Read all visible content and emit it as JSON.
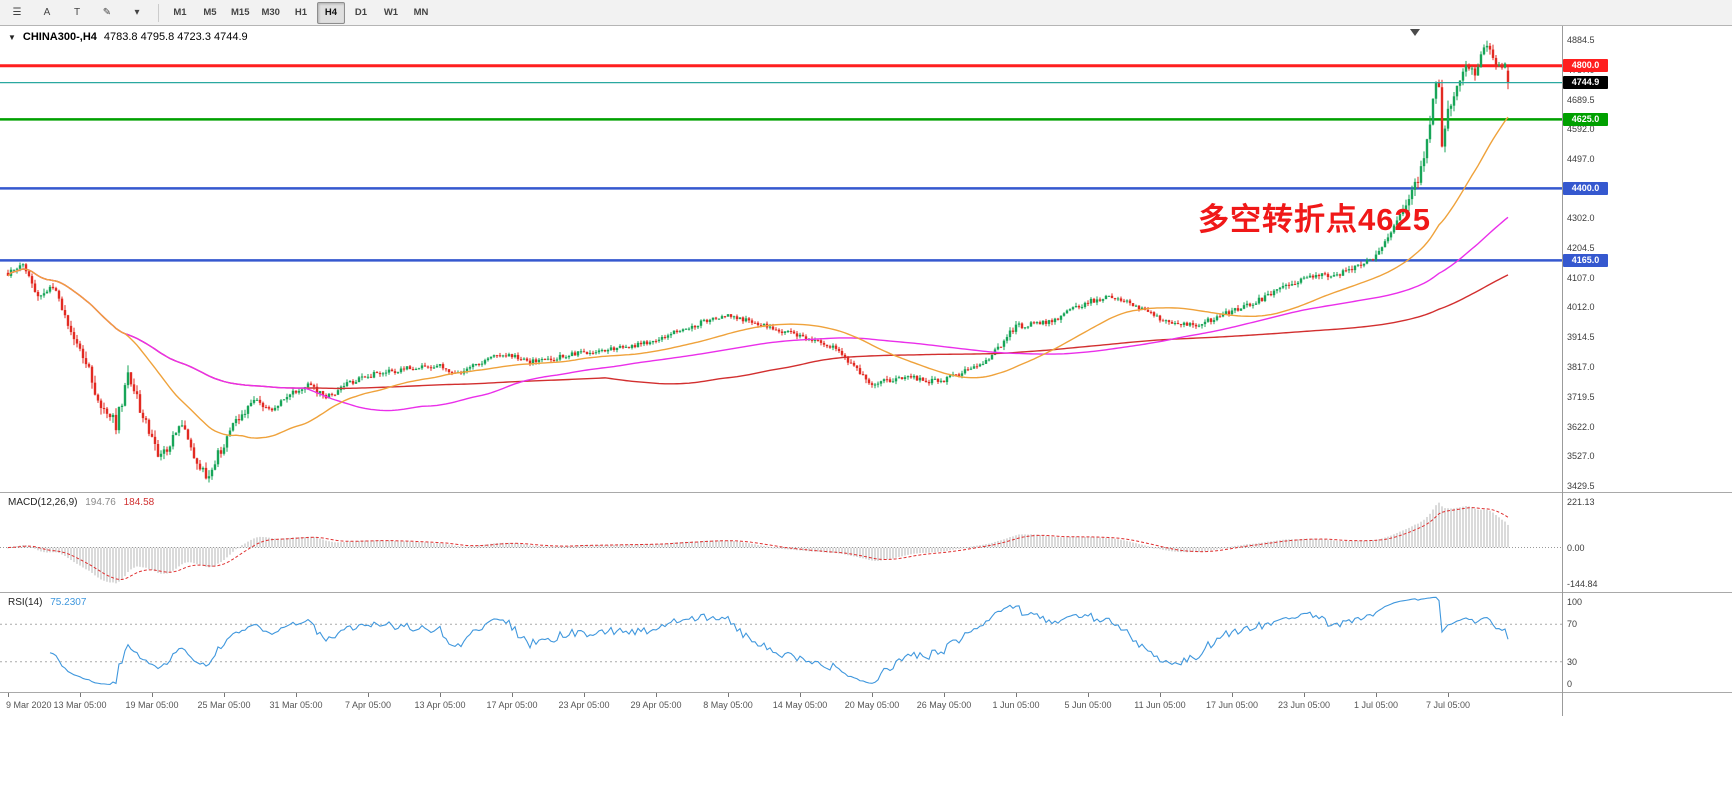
{
  "toolbar": {
    "icons": [
      {
        "name": "menu-icon",
        "glyph": "☰"
      },
      {
        "name": "cursor-tool-icon",
        "glyph": "A"
      },
      {
        "name": "text-tool-icon",
        "glyph": "T"
      },
      {
        "name": "draw-tool-icon",
        "glyph": "✎"
      },
      {
        "name": "caret-down-icon",
        "glyph": "▾"
      }
    ],
    "timeframes": [
      "M1",
      "M5",
      "M15",
      "M30",
      "H1",
      "H4",
      "D1",
      "W1",
      "MN"
    ],
    "selected_timeframe": "H4"
  },
  "main_chart": {
    "symbol": "CHINA300-,H4",
    "ohlc": "4783.8 4795.8 4723.3 4744.9",
    "annotation": {
      "text": "多空转折点4625",
      "color": "#f01818"
    },
    "current_price": {
      "value": 4744.9,
      "label": "4744.9",
      "line_color": "#2aa8a0",
      "badge_bg": "#000000"
    },
    "hlines": [
      {
        "value": 4800.0,
        "label": "4800.0",
        "color": "#ff1f1f",
        "width": 3
      },
      {
        "value": 4625.0,
        "label": "4625.0",
        "color": "#00a000",
        "width": 2.5
      },
      {
        "value": 4400.0,
        "label": "4400.0",
        "color": "#3558cf",
        "width": 2.5
      },
      {
        "value": 4165.0,
        "label": "4165.0",
        "color": "#3558cf",
        "width": 2.5
      }
    ],
    "scale_labels": [
      4884.5,
      4787.0,
      4689.5,
      4592.0,
      4497.0,
      4399.5,
      4302.0,
      4204.5,
      4107.0,
      4012.0,
      3914.5,
      3817.0,
      3719.5,
      3622.0,
      3527.0,
      3429.5
    ],
    "colors": {
      "up": "#18a558",
      "down": "#e22a22",
      "ma_fast": "#efa23b",
      "ma_mid": "#ea2fea",
      "ma_slow": "#d22f2f"
    }
  },
  "macd_panel": {
    "title": "MACD(12,26,9)",
    "value_main": "194.76",
    "value_signal": "184.58",
    "scale_top": "221.13",
    "scale_zero": "0.00",
    "scale_bottom": "-144.84",
    "bar_color": "#b4b4b4",
    "signal_color": "#e03030"
  },
  "rsi_panel": {
    "title": "RSI(14)",
    "value": "75.2307",
    "levels": [
      100,
      70,
      30,
      0
    ],
    "line_color": "#3f97dd"
  },
  "chart_data": {
    "type": "candlestick",
    "symbol": "CHINA300",
    "timeframe": "H4",
    "price_domain": [
      3416,
      4923
    ],
    "num_candles": 501,
    "last_candle": {
      "open": 4783.8,
      "high": 4795.8,
      "low": 4723.3,
      "close": 4744.9
    },
    "price_keyframes": [
      [
        0,
        4120,
        28
      ],
      [
        5,
        4155,
        30
      ],
      [
        10,
        4050,
        36
      ],
      [
        15,
        4080,
        34
      ],
      [
        20,
        3950,
        42
      ],
      [
        26,
        3830,
        50
      ],
      [
        31,
        3690,
        58
      ],
      [
        36,
        3630,
        60
      ],
      [
        40,
        3790,
        52
      ],
      [
        45,
        3660,
        54
      ],
      [
        50,
        3530,
        52
      ],
      [
        54,
        3560,
        46
      ],
      [
        58,
        3640,
        42
      ],
      [
        62,
        3530,
        48
      ],
      [
        66,
        3455,
        50
      ],
      [
        71,
        3550,
        46
      ],
      [
        76,
        3640,
        40
      ],
      [
        82,
        3710,
        32
      ],
      [
        88,
        3680,
        28
      ],
      [
        94,
        3725,
        26
      ],
      [
        100,
        3765,
        26
      ],
      [
        106,
        3715,
        26
      ],
      [
        112,
        3755,
        24
      ],
      [
        118,
        3785,
        24
      ],
      [
        126,
        3800,
        24
      ],
      [
        134,
        3815,
        22
      ],
      [
        144,
        3820,
        22
      ],
      [
        150,
        3795,
        22
      ],
      [
        156,
        3825,
        20
      ],
      [
        162,
        3850,
        20
      ],
      [
        168,
        3855,
        20
      ],
      [
        174,
        3835,
        22
      ],
      [
        180,
        3840,
        22
      ],
      [
        186,
        3855,
        20
      ],
      [
        192,
        3865,
        20
      ],
      [
        200,
        3875,
        20
      ],
      [
        208,
        3885,
        20
      ],
      [
        216,
        3905,
        20
      ],
      [
        222,
        3930,
        22
      ],
      [
        228,
        3950,
        22
      ],
      [
        234,
        3975,
        22
      ],
      [
        240,
        3990,
        22
      ],
      [
        246,
        3970,
        20
      ],
      [
        252,
        3955,
        20
      ],
      [
        258,
        3935,
        20
      ],
      [
        264,
        3920,
        20
      ],
      [
        270,
        3900,
        20
      ],
      [
        276,
        3880,
        22
      ],
      [
        282,
        3820,
        26
      ],
      [
        288,
        3760,
        28
      ],
      [
        294,
        3775,
        24
      ],
      [
        300,
        3790,
        24
      ],
      [
        306,
        3770,
        22
      ],
      [
        312,
        3775,
        22
      ],
      [
        318,
        3800,
        22
      ],
      [
        324,
        3820,
        22
      ],
      [
        330,
        3880,
        26
      ],
      [
        336,
        3950,
        28
      ],
      [
        342,
        3960,
        24
      ],
      [
        348,
        3965,
        22
      ],
      [
        354,
        4000,
        24
      ],
      [
        360,
        4030,
        24
      ],
      [
        366,
        4045,
        22
      ],
      [
        372,
        4040,
        22
      ],
      [
        378,
        4005,
        22
      ],
      [
        384,
        3975,
        22
      ],
      [
        390,
        3960,
        22
      ],
      [
        396,
        3955,
        22
      ],
      [
        402,
        3975,
        22
      ],
      [
        408,
        4000,
        22
      ],
      [
        414,
        4020,
        24
      ],
      [
        420,
        4050,
        24
      ],
      [
        426,
        4080,
        26
      ],
      [
        432,
        4110,
        26
      ],
      [
        438,
        4115,
        24
      ],
      [
        444,
        4120,
        24
      ],
      [
        448,
        4140,
        26
      ],
      [
        452,
        4155,
        26
      ],
      [
        456,
        4180,
        30
      ],
      [
        460,
        4230,
        34
      ],
      [
        464,
        4310,
        44
      ],
      [
        468,
        4390,
        50
      ],
      [
        471,
        4460,
        55
      ],
      [
        474,
        4600,
        65
      ],
      [
        476,
        4745,
        60
      ],
      [
        477,
        4730,
        70
      ],
      [
        478,
        4510,
        80
      ],
      [
        480,
        4640,
        60
      ],
      [
        483,
        4730,
        50
      ],
      [
        486,
        4800,
        48
      ],
      [
        489,
        4770,
        46
      ],
      [
        491,
        4840,
        46
      ],
      [
        493,
        4875,
        44
      ],
      [
        495,
        4820,
        46
      ],
      [
        497,
        4790,
        44
      ],
      [
        499,
        4800,
        42
      ],
      [
        500,
        4744.9,
        40
      ]
    ],
    "x_axis": {
      "labels": [
        "9 Mar 2020",
        "13 Mar 05:00",
        "19 Mar 05:00",
        "25 Mar 05:00",
        "31 Mar 05:00",
        "7 Apr 05:00",
        "13 Apr 05:00",
        "17 Apr 05:00",
        "23 Apr 05:00",
        "29 Apr 05:00",
        "8 May 05:00",
        "14 May 05:00",
        "20 May 05:00",
        "26 May 05:00",
        "1 Jun 05:00",
        "5 Jun 05:00",
        "11 Jun 05:00",
        "17 Jun 05:00",
        "23 Jun 05:00",
        "1 Jul 05:00",
        "7 Jul 05:00"
      ],
      "indices": [
        0,
        24,
        48,
        72,
        96,
        120,
        144,
        168,
        192,
        216,
        240,
        264,
        288,
        312,
        336,
        360,
        384,
        408,
        432,
        456,
        480
      ]
    },
    "moving_averages": [
      {
        "name": "fast",
        "period": 40,
        "color_key": "ma_fast"
      },
      {
        "name": "mid",
        "period": 100,
        "color_key": "ma_mid"
      },
      {
        "name": "slow",
        "period": 200,
        "color_key": "ma_slow"
      }
    ],
    "indicators": {
      "macd": {
        "fast": 12,
        "slow": 26,
        "signal": 9,
        "current": 194.76,
        "current_signal": 184.58,
        "scale_max": 221.13,
        "scale_min": -144.84
      },
      "rsi": {
        "period": 14,
        "current": 75.2307,
        "overbought": 70,
        "oversold": 30
      }
    },
    "horizontal_levels": [
      4800.0,
      4625.0,
      4400.0,
      4165.0
    ]
  }
}
